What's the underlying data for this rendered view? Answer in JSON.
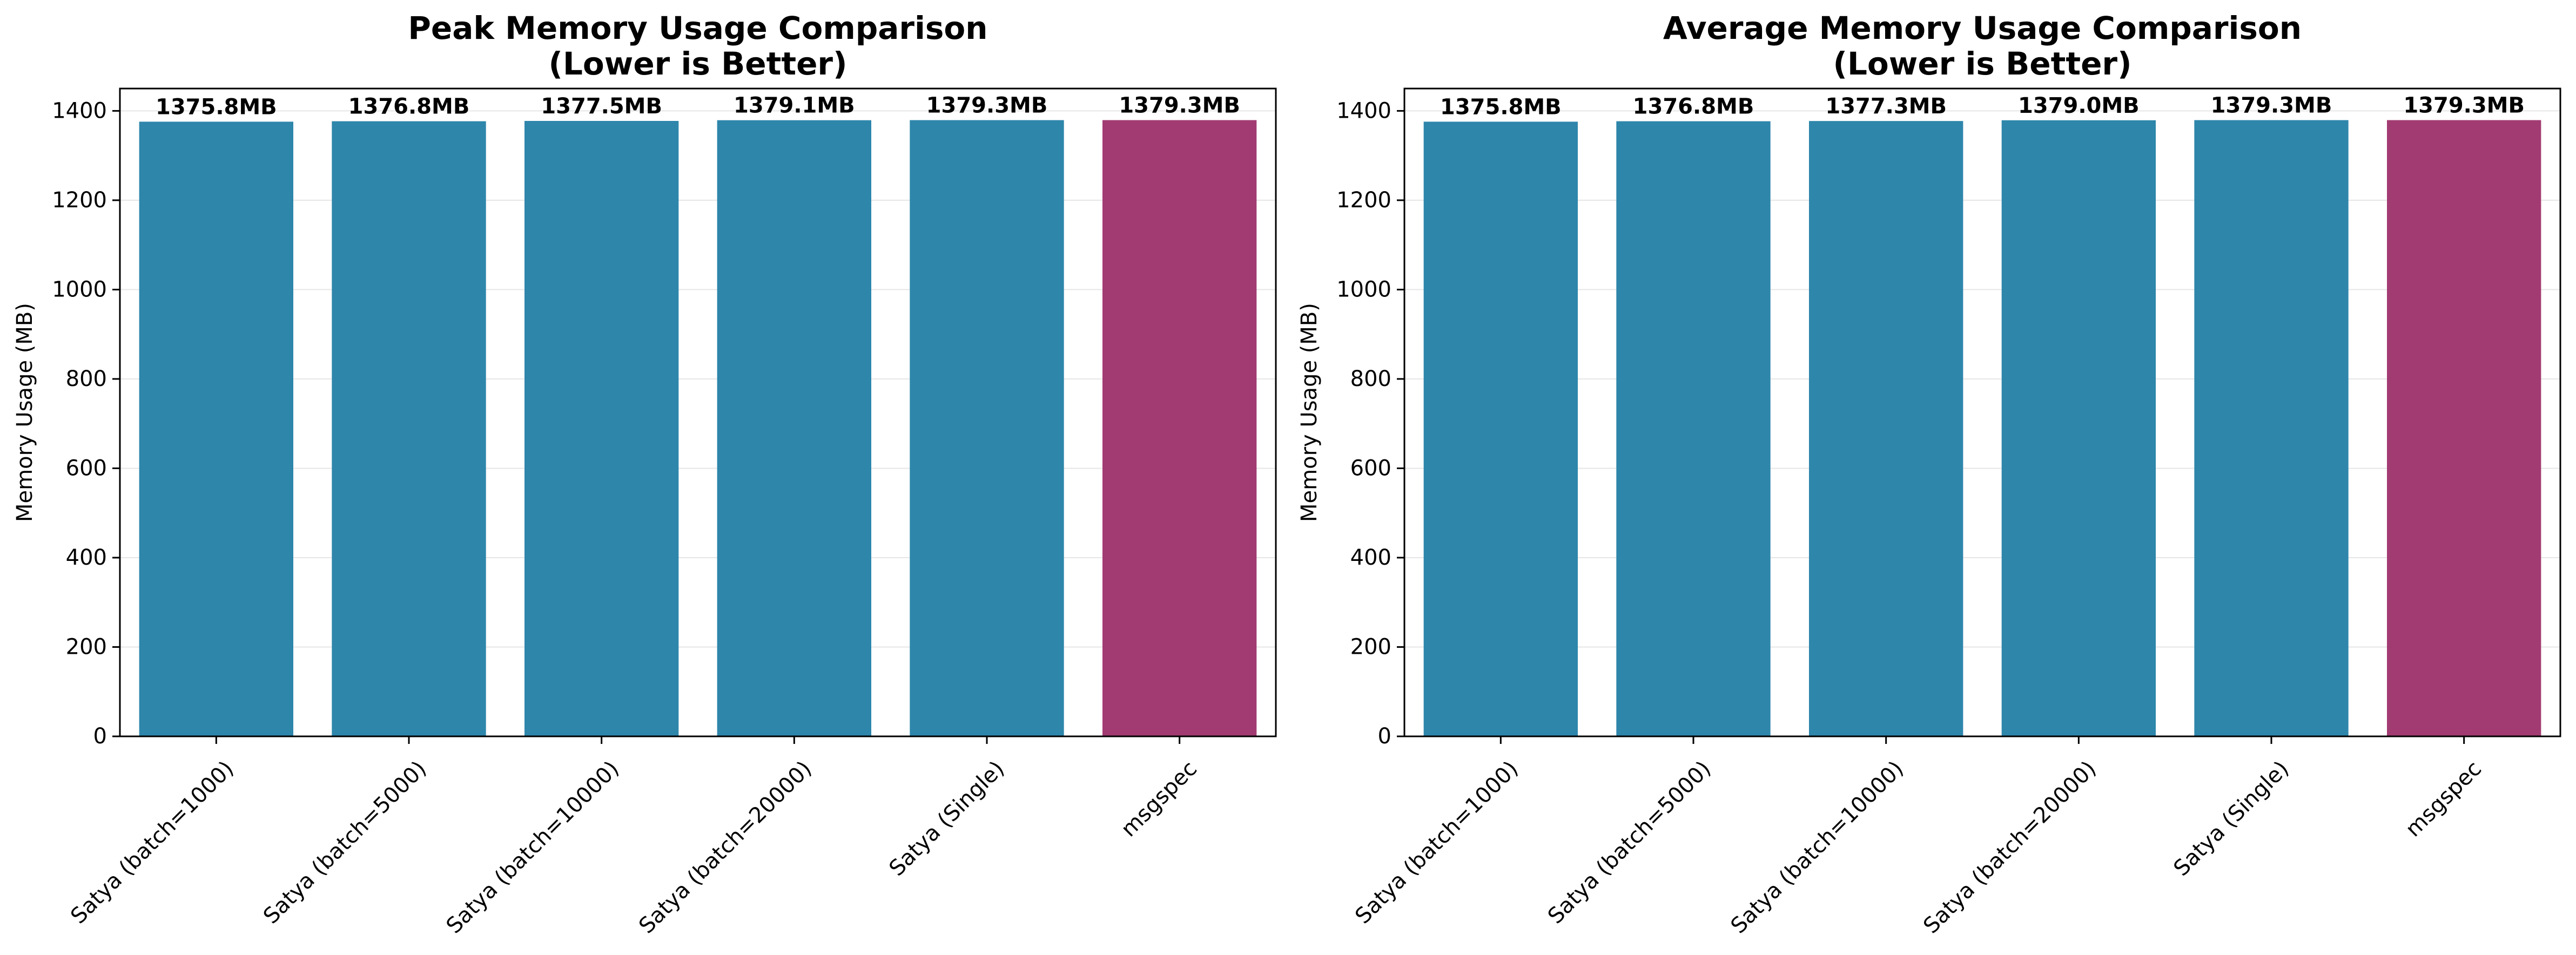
{
  "colors": {
    "satya": "#2e86ab",
    "msgspec": "#a23b72",
    "grid": "#e6e6e6",
    "axis": "#000000"
  },
  "chart_data": [
    {
      "type": "bar",
      "title": [
        "Peak Memory Usage Comparison",
        "(Lower is Better)"
      ],
      "xlabel": "",
      "ylabel": "Memory Usage (MB)",
      "ylim": [
        0,
        1450
      ],
      "yticks": [
        0,
        200,
        400,
        600,
        800,
        1000,
        1200,
        1400
      ],
      "grid": "horizontal",
      "categories": [
        "Satya (batch=1000)",
        "Satya (batch=5000)",
        "Satya (batch=10000)",
        "Satya (batch=20000)",
        "Satya (Single)",
        "msgspec"
      ],
      "values": [
        1375.8,
        1376.8,
        1377.5,
        1379.1,
        1379.3,
        1379.3
      ],
      "value_labels": [
        "1375.8MB",
        "1376.8MB",
        "1377.5MB",
        "1379.1MB",
        "1379.3MB",
        "1379.3MB"
      ],
      "bar_colors": [
        "#2e86ab",
        "#2e86ab",
        "#2e86ab",
        "#2e86ab",
        "#2e86ab",
        "#a23b72"
      ]
    },
    {
      "type": "bar",
      "title": [
        "Average Memory Usage Comparison",
        "(Lower is Better)"
      ],
      "xlabel": "",
      "ylabel": "Memory Usage (MB)",
      "ylim": [
        0,
        1450
      ],
      "yticks": [
        0,
        200,
        400,
        600,
        800,
        1000,
        1200,
        1400
      ],
      "grid": "horizontal",
      "categories": [
        "Satya (batch=1000)",
        "Satya (batch=5000)",
        "Satya (batch=10000)",
        "Satya (batch=20000)",
        "Satya (Single)",
        "msgspec"
      ],
      "values": [
        1375.8,
        1376.8,
        1377.3,
        1379.0,
        1379.3,
        1379.3
      ],
      "value_labels": [
        "1375.8MB",
        "1376.8MB",
        "1377.3MB",
        "1379.0MB",
        "1379.3MB",
        "1379.3MB"
      ],
      "bar_colors": [
        "#2e86ab",
        "#2e86ab",
        "#2e86ab",
        "#2e86ab",
        "#2e86ab",
        "#a23b72"
      ]
    }
  ]
}
